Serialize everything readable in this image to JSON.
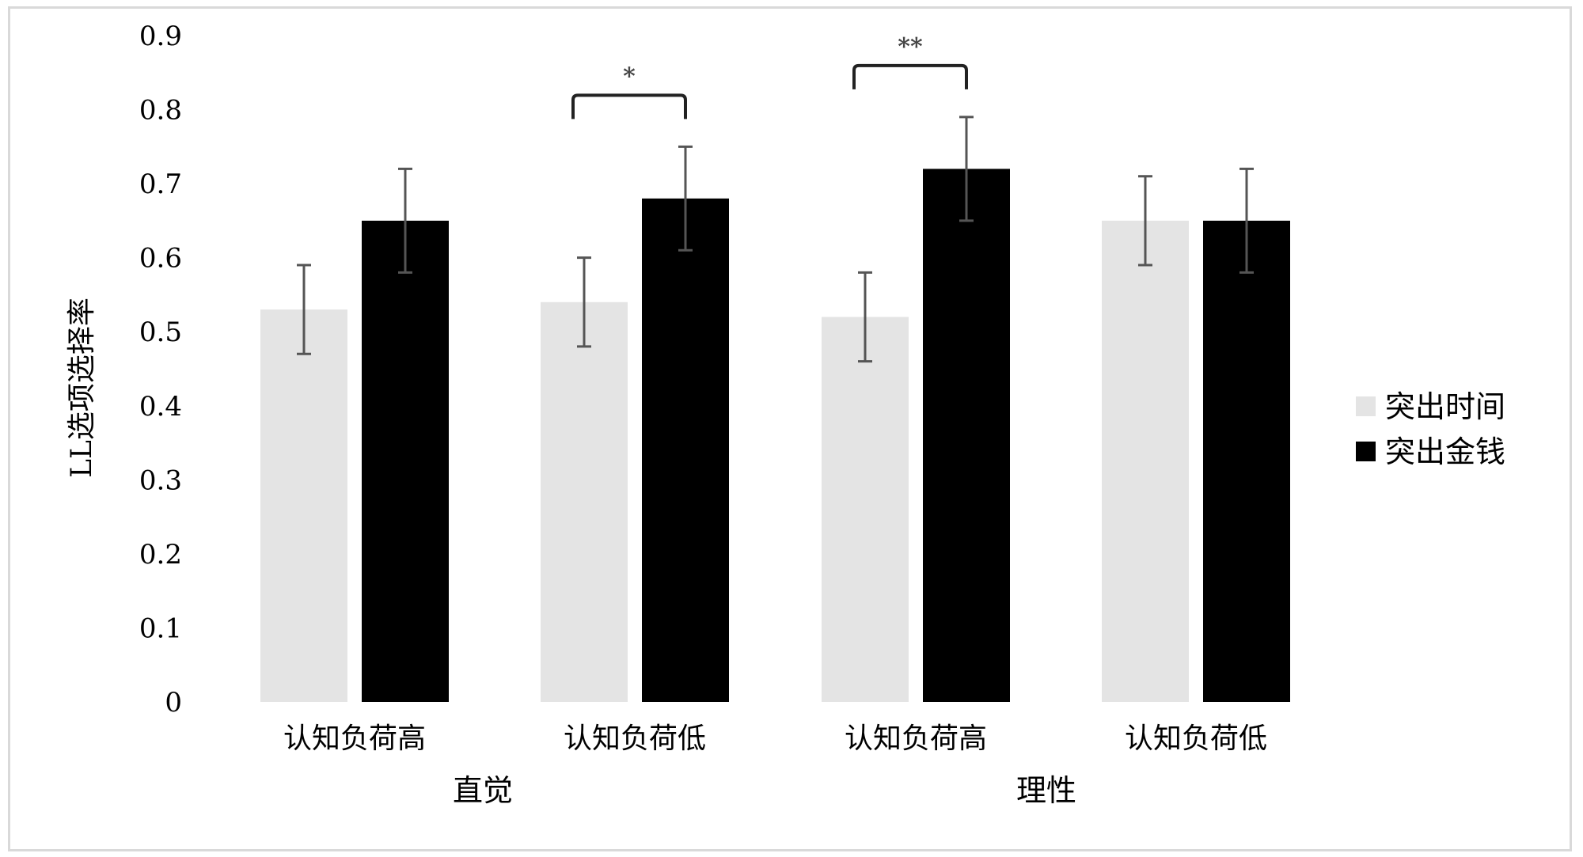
{
  "chart_data": {
    "type": "bar",
    "title": "",
    "xlabel": "",
    "ylabel": "LL选项选择率",
    "ylim": [
      0,
      0.9
    ],
    "yticks": [
      "0",
      "0.1",
      "0.2",
      "0.3",
      "0.4",
      "0.5",
      "0.6",
      "0.7",
      "0.8",
      "0.9"
    ],
    "grid": false,
    "legend_position": "right",
    "groups": [
      {
        "label": "直觉",
        "categories": [
          "认知负荷高",
          "认知负荷低"
        ]
      },
      {
        "label": "理性",
        "categories": [
          "认知负荷高",
          "认知负荷低"
        ]
      }
    ],
    "categories": [
      "认知负荷高",
      "认知负荷低",
      "认知负荷高",
      "认知负荷低"
    ],
    "series": [
      {
        "name": "突出时间",
        "color": "#e4e4e4",
        "values": [
          0.53,
          0.54,
          0.52,
          0.65
        ],
        "error": [
          0.06,
          0.06,
          0.06,
          0.06
        ]
      },
      {
        "name": "突出金钱",
        "color": "#000000",
        "values": [
          0.65,
          0.68,
          0.72,
          0.65
        ],
        "error": [
          0.07,
          0.07,
          0.07,
          0.07
        ]
      }
    ],
    "significance": [
      {
        "category_index": 1,
        "label": "*"
      },
      {
        "category_index": 2,
        "label": "**"
      }
    ]
  }
}
